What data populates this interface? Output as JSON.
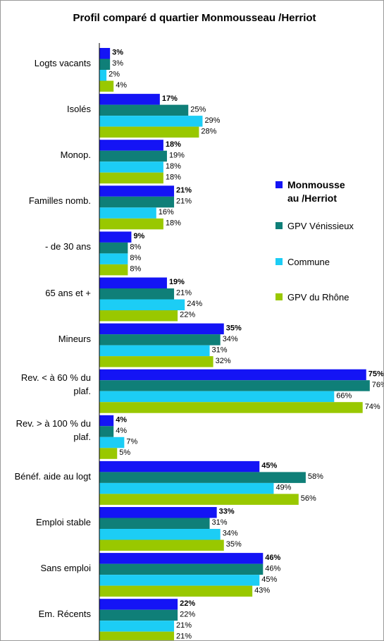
{
  "chart_data": {
    "type": "bar",
    "orientation": "horizontal",
    "title": "Profil comparé d quartier Monmousseau /Herriot",
    "categories": [
      "Logts vacants",
      "Isolés",
      "Monop.",
      "Familles nomb.",
      "- de 30 ans",
      "65 ans et +",
      "Mineurs",
      "Rev. < à 60 % du plaf.",
      "Rev. > à 100 % du plaf.",
      "Bénéf. aide au logt",
      "Emploi stable",
      "Sans emploi",
      "Em. Récents"
    ],
    "xlim": [
      0,
      80
    ],
    "legend": "right",
    "series": [
      {
        "name": "Monmousse au /Herriot",
        "color": "#1414f5",
        "values": [
          3,
          17,
          18,
          21,
          9,
          19,
          35,
          75,
          4,
          45,
          33,
          46,
          22
        ],
        "value_labels": [
          "3%",
          "17%",
          "18%",
          "21%",
          "9%",
          "19%",
          "35%",
          "75%",
          "4%",
          "45%",
          "33%",
          "46%",
          "22%"
        ]
      },
      {
        "name": "GPV Vénissieux",
        "color": "#0f7f78",
        "values": [
          3,
          25,
          19,
          21,
          8,
          21,
          34,
          76,
          4,
          58,
          31,
          46,
          22
        ],
        "value_labels": [
          "3%",
          "25%",
          "19%",
          "21%",
          "8%",
          "21%",
          "34%",
          "76%",
          "4%",
          "58%",
          "31%",
          "46%",
          "22%"
        ]
      },
      {
        "name": "Commune",
        "color": "#1ccdf5",
        "values": [
          2,
          29,
          18,
          16,
          8,
          24,
          31,
          66,
          7,
          49,
          34,
          45,
          21
        ],
        "value_labels": [
          "2%",
          "29%",
          "18%",
          "16%",
          "8%",
          "24%",
          "31%",
          "66%",
          "7%",
          "49%",
          "34%",
          "45%",
          "21%"
        ]
      },
      {
        "name": "GPV du Rhône",
        "color": "#99c800",
        "values": [
          4,
          28,
          18,
          18,
          8,
          22,
          32,
          74,
          5,
          56,
          35,
          43,
          21
        ],
        "value_labels": [
          "4%",
          "28%",
          "18%",
          "18%",
          "8%",
          "22%",
          "32%",
          "74%",
          "5%",
          "56%",
          "35%",
          "43%",
          "21%"
        ]
      }
    ]
  }
}
